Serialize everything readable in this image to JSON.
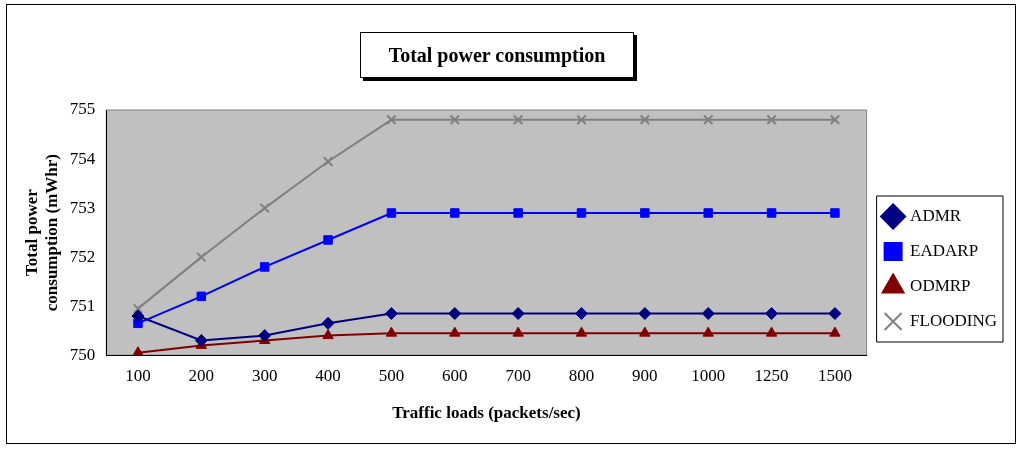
{
  "chart_data": {
    "type": "line",
    "title": "Total power consumption",
    "xlabel": "Traffic loads (packets/sec)",
    "ylabel": "Total power consumption (mWhr)",
    "categories": [
      "100",
      "200",
      "300",
      "400",
      "500",
      "600",
      "700",
      "800",
      "900",
      "1000",
      "1250",
      "1500"
    ],
    "series": [
      {
        "name": "ADMR",
        "color": "#000080",
        "marker": "diamond",
        "values": [
          750.8,
          750.3,
          750.4,
          750.65,
          750.85,
          750.85,
          750.85,
          750.85,
          750.85,
          750.85,
          750.85,
          750.85
        ]
      },
      {
        "name": "EADARP",
        "color": "#0000ff",
        "marker": "square",
        "values": [
          750.65,
          751.2,
          751.8,
          752.35,
          752.9,
          752.9,
          752.9,
          752.9,
          752.9,
          752.9,
          752.9,
          752.9
        ]
      },
      {
        "name": "ODMRP",
        "color": "#800000",
        "marker": "triangle",
        "values": [
          750.05,
          750.2,
          750.3,
          750.4,
          750.45,
          750.45,
          750.45,
          750.45,
          750.45,
          750.45,
          750.45,
          750.45
        ]
      },
      {
        "name": "FLOODING",
        "color": "#808080",
        "marker": "cross",
        "values": [
          750.95,
          752.0,
          753.0,
          753.95,
          754.8,
          754.8,
          754.8,
          754.8,
          754.8,
          754.8,
          754.8,
          754.8
        ]
      }
    ],
    "ylim": [
      750,
      755
    ],
    "yticks": [
      750,
      751,
      752,
      753,
      754,
      755
    ],
    "grid": false,
    "legend": "right"
  }
}
